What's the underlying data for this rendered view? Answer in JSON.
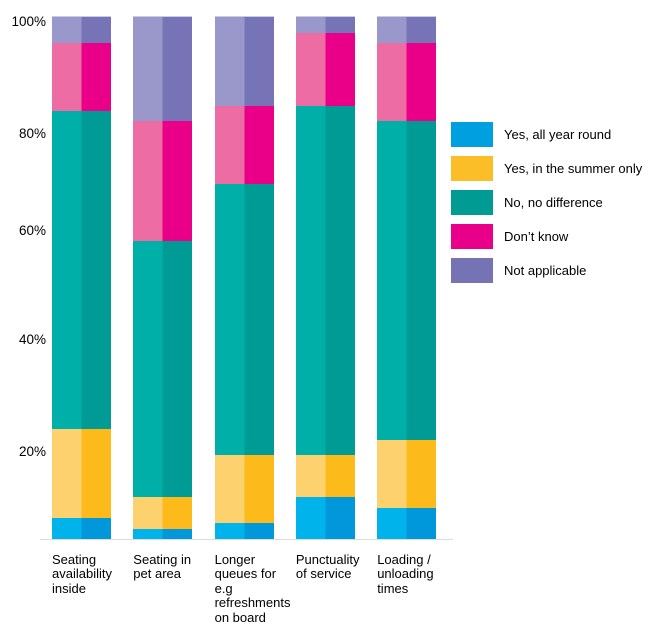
{
  "chart_data": {
    "type": "bar",
    "subtype": "stacked-100-percent",
    "title": "",
    "xlabel": "",
    "ylabel": "",
    "grid": false,
    "categories": [
      "Seating availability inside",
      "Seating in pet area",
      "Longer queues for e.g refreshments on board",
      "Punctuality of service",
      "Loading / unloading times"
    ],
    "category_lines": [
      [
        "Seating",
        "availability",
        "inside"
      ],
      [
        "Seating in",
        "pet area"
      ],
      [
        "Longer",
        "queues for",
        "e.g",
        "refreshments",
        "on board"
      ],
      [
        "Punctuality",
        "of service"
      ],
      [
        "Loading /",
        "unloading",
        "times"
      ]
    ],
    "series": [
      {
        "name": "Yes, all year round",
        "values": [
          4,
          2,
          3,
          8,
          6
        ],
        "colors": {
          "light": "#00B3EA",
          "dark": "#0098DA",
          "legend": "#009FE0"
        }
      },
      {
        "name": "Yes, in the summer only",
        "values": [
          17,
          6,
          13,
          8,
          13
        ],
        "colors": {
          "light": "#FDD26E",
          "dark": "#FCBB1A",
          "legend": "#FBBE29"
        }
      },
      {
        "name": "No, no difference",
        "values": [
          61,
          49,
          52,
          67,
          61
        ],
        "colors": {
          "light": "#00AFA8",
          "dark": "#009B94",
          "legend": "#009B92"
        }
      },
      {
        "name": "Don’t know",
        "values": [
          13,
          23,
          15,
          14,
          15
        ],
        "colors": {
          "light": "#EE6CA4",
          "dark": "#EA0088",
          "legend": "#E8008A"
        }
      },
      {
        "name": "Not applicable",
        "values": [
          5,
          20,
          17,
          3,
          5
        ],
        "colors": {
          "light": "#9A98CA",
          "dark": "#7673B6",
          "legend": "#7673B5"
        }
      }
    ],
    "y_axis": {
      "range": [
        0,
        100
      ],
      "tick_values": [
        100,
        80,
        60,
        40,
        20
      ],
      "ticks": [
        "100%",
        "80%",
        "60%",
        "40%",
        "20%"
      ],
      "units": "percent"
    },
    "legend": {
      "position": "right",
      "items": [
        "Yes, all year round",
        "Yes, in the summer only",
        "No, no difference",
        "Don’t know",
        "Not applicable"
      ]
    }
  },
  "colors": {
    "background": "#FFFFFF",
    "text": "#000000",
    "axis_line": "#DCDCDC",
    "bar_top_edge": "#C8CCE8"
  }
}
